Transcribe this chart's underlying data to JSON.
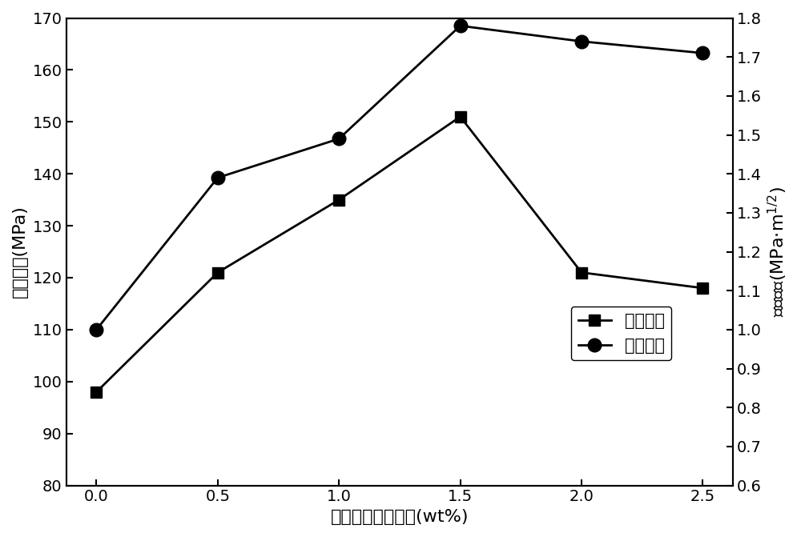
{
  "x": [
    0.0,
    0.5,
    1.0,
    1.5,
    2.0,
    2.5
  ],
  "bending_strength": [
    98,
    121,
    135,
    151,
    121,
    118
  ],
  "fracture_toughness": [
    1.0,
    1.39,
    1.49,
    1.78,
    1.74,
    1.71
  ],
  "xlabel": "石墨烯纳米片含量(wt%)",
  "ylabel_left": "弯曲强度(MPa)",
  "ylabel_right": "断裂韧性(MPa·m1/2)",
  "legend_strength": "弯曲强度",
  "legend_toughness": "断裂韧性",
  "ylim_left": [
    80,
    170
  ],
  "ylim_right": [
    0.6,
    1.8
  ],
  "yticks_left": [
    80,
    90,
    100,
    110,
    120,
    130,
    140,
    150,
    160,
    170
  ],
  "yticks_right": [
    0.6,
    0.7,
    0.8,
    0.9,
    1.0,
    1.1,
    1.2,
    1.3,
    1.4,
    1.5,
    1.6,
    1.7,
    1.8
  ],
  "xticks": [
    0.0,
    0.5,
    1.0,
    1.5,
    2.0,
    2.5
  ],
  "line_color": "black",
  "marker_square": "s",
  "marker_circle": "o",
  "marker_size": 10,
  "marker_size_circle": 12,
  "linewidth": 2,
  "background_color": "white",
  "xlabel_fontsize": 16,
  "ylabel_fontsize": 16,
  "tick_fontsize": 14,
  "legend_fontsize": 15
}
